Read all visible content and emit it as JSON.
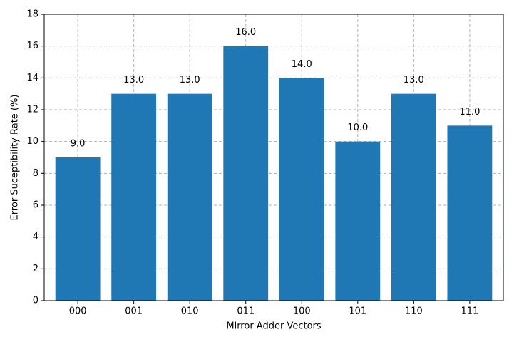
{
  "chart_data": {
    "type": "bar",
    "x_label": "Mirror Adder Vectors",
    "y_label": "Error Suceptibility Rate (%)",
    "categories": [
      "000",
      "001",
      "010",
      "011",
      "100",
      "101",
      "110",
      "111"
    ],
    "values": [
      9,
      13,
      13,
      16,
      14,
      10,
      13,
      11
    ],
    "value_labels": [
      "9.0",
      "13.0",
      "13.0",
      "16.0",
      "14.0",
      "10.0",
      "13.0",
      "11.0"
    ],
    "color": "#1f77b4",
    "ylim": [
      0,
      18
    ],
    "yticks": [
      0,
      2,
      4,
      6,
      8,
      10,
      12,
      14,
      16,
      18
    ],
    "grid": true
  }
}
